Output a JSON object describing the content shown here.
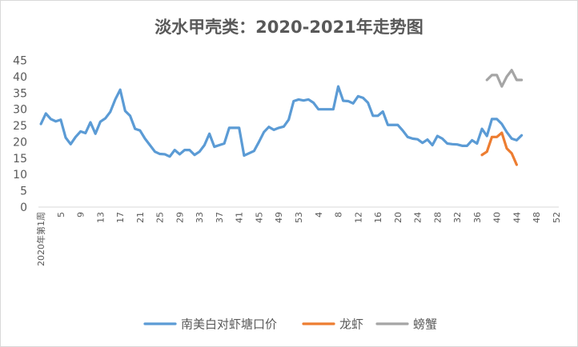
{
  "chart_data": {
    "type": "line",
    "title": "淡水甲壳类：2020-2021年走势图",
    "xlabel": "",
    "ylabel": "",
    "ylim": [
      0,
      45
    ],
    "yticks": [
      0,
      5,
      10,
      15,
      20,
      25,
      30,
      35,
      40,
      45
    ],
    "x_first_label": "2020年第1周",
    "x_tick_labels": [
      "5",
      "9",
      "13",
      "17",
      "21",
      "25",
      "29",
      "33",
      "37",
      "41",
      "45",
      "49",
      "53",
      "4",
      "8",
      "12",
      "16",
      "20",
      "24",
      "28",
      "32",
      "36",
      "40",
      "44",
      "48",
      "52"
    ],
    "grid": false,
    "legend_position": "bottom",
    "series": [
      {
        "name": "南美白对虾塘口价",
        "color": "#5b9bd5",
        "start_index": 0,
        "values": [
          25.5,
          28.7,
          27,
          26.3,
          26.8,
          21.3,
          19.3,
          21.5,
          23.2,
          22.7,
          26,
          22.5,
          26.2,
          27.2,
          29.2,
          33,
          36,
          29.5,
          28,
          24,
          23.5,
          21,
          19,
          17,
          16.3,
          16.2,
          15.5,
          17.5,
          16.2,
          17.5,
          17.5,
          16,
          17,
          19,
          22.5,
          18.5,
          19,
          19.5,
          24.3,
          24.3,
          24.3,
          15.8,
          16.5,
          17.2,
          20,
          23,
          24.6,
          23.7,
          24.3,
          24.7,
          26.8,
          32.5,
          33,
          32.7,
          33,
          32,
          30,
          30,
          30,
          30,
          37,
          32.6,
          32.5,
          31.8,
          34,
          33.5,
          32,
          28,
          28,
          29.3,
          25.2,
          25.2,
          25.2,
          23.5,
          21.5,
          21,
          20.8,
          19.7,
          20.7,
          19,
          21.8,
          21,
          19.5,
          19.3,
          19.2,
          18.8,
          18.8,
          20.5,
          19.5,
          24,
          21.8,
          27,
          27,
          25.5,
          23,
          21,
          20.5,
          22
        ]
      },
      {
        "name": "龙虾",
        "color": "#ed7d31",
        "start_index": 89,
        "values": [
          16,
          17,
          21.5,
          21.5,
          22.8,
          18,
          16.5,
          13
        ]
      },
      {
        "name": "螃蟹",
        "color": "#a5a5a5",
        "start_index": 90,
        "values": [
          39,
          40.5,
          40.5,
          37,
          40,
          42,
          39,
          39
        ]
      }
    ]
  }
}
